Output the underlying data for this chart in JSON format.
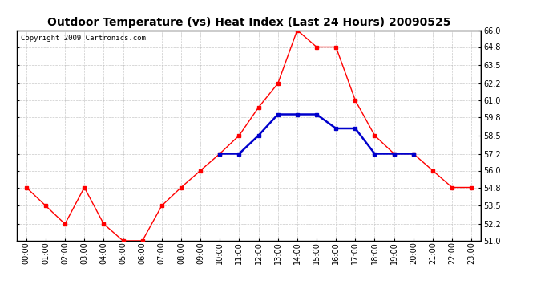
{
  "title": "Outdoor Temperature (vs) Heat Index (Last 24 Hours) 20090525",
  "copyright": "Copyright 2009 Cartronics.com",
  "x_labels": [
    "00:00",
    "01:00",
    "02:00",
    "03:00",
    "04:00",
    "05:00",
    "06:00",
    "07:00",
    "08:00",
    "09:00",
    "10:00",
    "11:00",
    "12:00",
    "13:00",
    "14:00",
    "15:00",
    "16:00",
    "17:00",
    "18:00",
    "19:00",
    "20:00",
    "21:00",
    "22:00",
    "23:00"
  ],
  "temp_red": [
    54.8,
    53.5,
    52.2,
    54.8,
    52.2,
    51.0,
    51.0,
    53.5,
    54.8,
    56.0,
    57.2,
    58.5,
    60.5,
    62.2,
    66.0,
    64.8,
    64.8,
    61.0,
    58.5,
    57.2,
    57.2,
    56.0,
    54.8,
    54.8
  ],
  "heat_blue": [
    null,
    null,
    null,
    null,
    null,
    null,
    null,
    null,
    null,
    null,
    57.2,
    57.2,
    58.5,
    60.0,
    60.0,
    60.0,
    59.0,
    59.0,
    57.2,
    57.2,
    57.2,
    null,
    null,
    null
  ],
  "ylim_min": 51.0,
  "ylim_max": 66.0,
  "yticks": [
    51.0,
    52.2,
    53.5,
    54.8,
    56.0,
    57.2,
    58.5,
    59.8,
    61.0,
    62.2,
    63.5,
    64.8,
    66.0
  ],
  "bg_color": "#ffffff",
  "plot_bg": "#ffffff",
  "grid_color": "#bbbbbb",
  "red_color": "#ff0000",
  "blue_color": "#0000cc",
  "title_fontsize": 10,
  "tick_fontsize": 7,
  "copyright_fontsize": 6.5
}
